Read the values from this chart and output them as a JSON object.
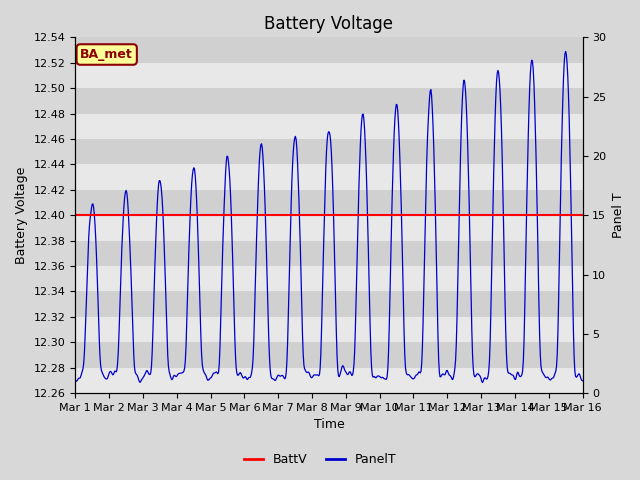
{
  "title": "Battery Voltage",
  "xlabel": "Time",
  "ylabel_left": "Battery Voltage",
  "ylabel_right": "Panel T",
  "ylim_left": [
    12.26,
    12.54
  ],
  "ylim_right": [
    0,
    30
  ],
  "xlim": [
    0,
    15
  ],
  "battv_value": 12.4,
  "battv_color": "#ff0000",
  "panelt_color": "#0000cc",
  "bg_color": "#d8d8d8",
  "stripe_color_light": "#e8e8e8",
  "stripe_color_dark": "#d0d0d0",
  "label_text": "BA_met",
  "label_bg": "#ffff99",
  "label_border": "#8b0000",
  "label_text_color": "#8b0000",
  "xtick_labels": [
    "Mar 1",
    "Mar 2",
    "Mar 3",
    "Mar 4",
    "Mar 5",
    "Mar 6",
    "Mar 7",
    "Mar 8",
    "Mar 9",
    "Mar 10",
    "Mar 11",
    "Mar 12",
    "Mar 13",
    "Mar 14",
    "Mar 15",
    "Mar 16"
  ],
  "ytick_left": [
    12.26,
    12.28,
    12.3,
    12.32,
    12.34,
    12.36,
    12.38,
    12.4,
    12.42,
    12.44,
    12.46,
    12.48,
    12.5,
    12.52,
    12.54
  ],
  "ytick_right": [
    0,
    5,
    10,
    15,
    20,
    25,
    30
  ],
  "legend_items": [
    "BattV",
    "PanelT"
  ],
  "title_fontsize": 12,
  "axis_label_fontsize": 9,
  "tick_fontsize": 8
}
